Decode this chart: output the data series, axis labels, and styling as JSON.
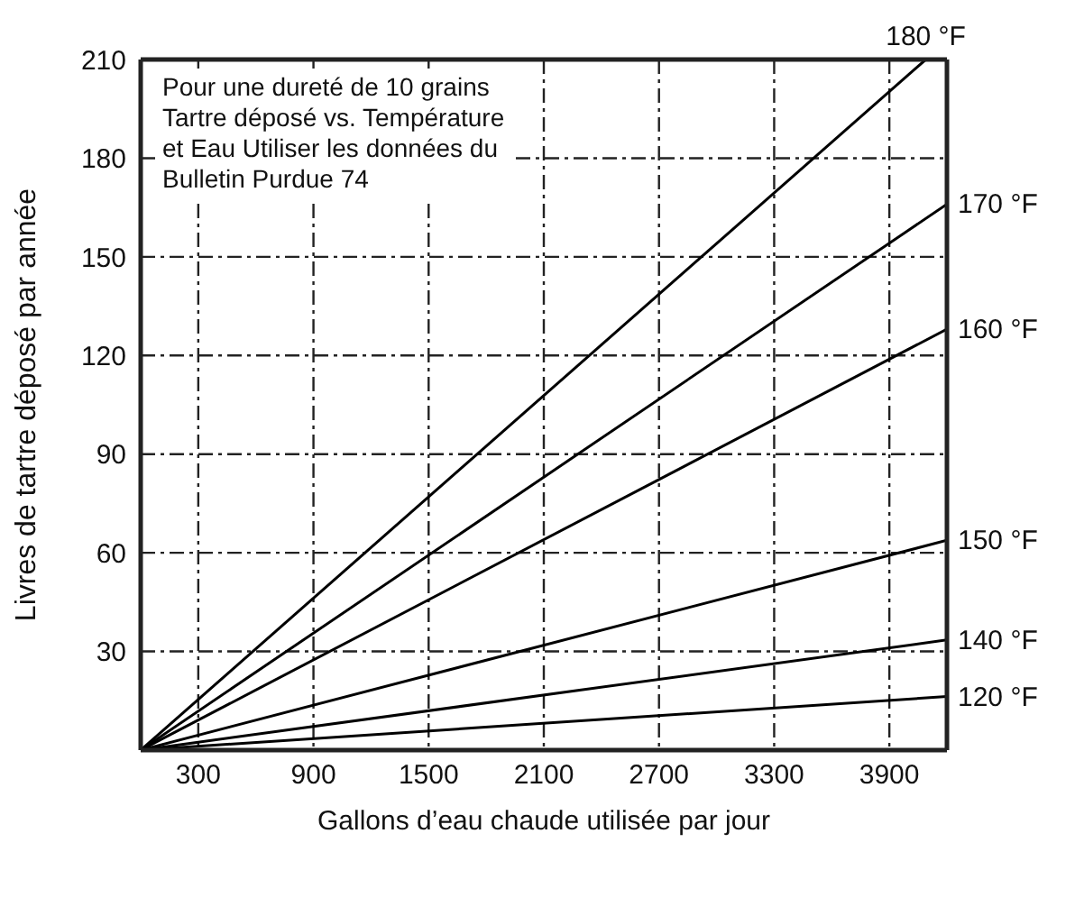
{
  "chart_data": {
    "type": "line",
    "xlabel": "Gallons d’eau chaude utilisée par jour",
    "ylabel": "Livres de tartre déposé par année",
    "xlim": [
      0,
      4200
    ],
    "xticks": [
      300,
      900,
      1500,
      2100,
      2700,
      3300,
      3900
    ],
    "ylim": [
      0,
      210
    ],
    "yticks": [
      30,
      60,
      90,
      120,
      150,
      180,
      210
    ],
    "grid": true,
    "legend": false,
    "marker": "none",
    "line_style": "solid",
    "annotations": [
      "Pour une dureté de 10 grains\nTartre déposé vs. Température\net Eau Utiliser les données du\nBulletin Purdue 74"
    ],
    "series": [
      {
        "name": "120 °F",
        "color": "#000000",
        "x": [
          0,
          4200
        ],
        "values": [
          0,
          16.3
        ]
      },
      {
        "name": "140 °F",
        "color": "#000000",
        "x": [
          0,
          4200
        ],
        "values": [
          0,
          33.5
        ]
      },
      {
        "name": "150 °F",
        "color": "#000000",
        "x": [
          0,
          4200
        ],
        "values": [
          0,
          63.8
        ]
      },
      {
        "name": "160 °F",
        "color": "#000000",
        "x": [
          0,
          4200
        ],
        "values": [
          0,
          128
        ]
      },
      {
        "name": "170 °F",
        "color": "#000000",
        "x": [
          0,
          4200
        ],
        "values": [
          0,
          166
        ]
      },
      {
        "name": "180 °F",
        "color": "#000000",
        "x": [
          0,
          4090
        ],
        "values": [
          0,
          210
        ]
      }
    ]
  }
}
